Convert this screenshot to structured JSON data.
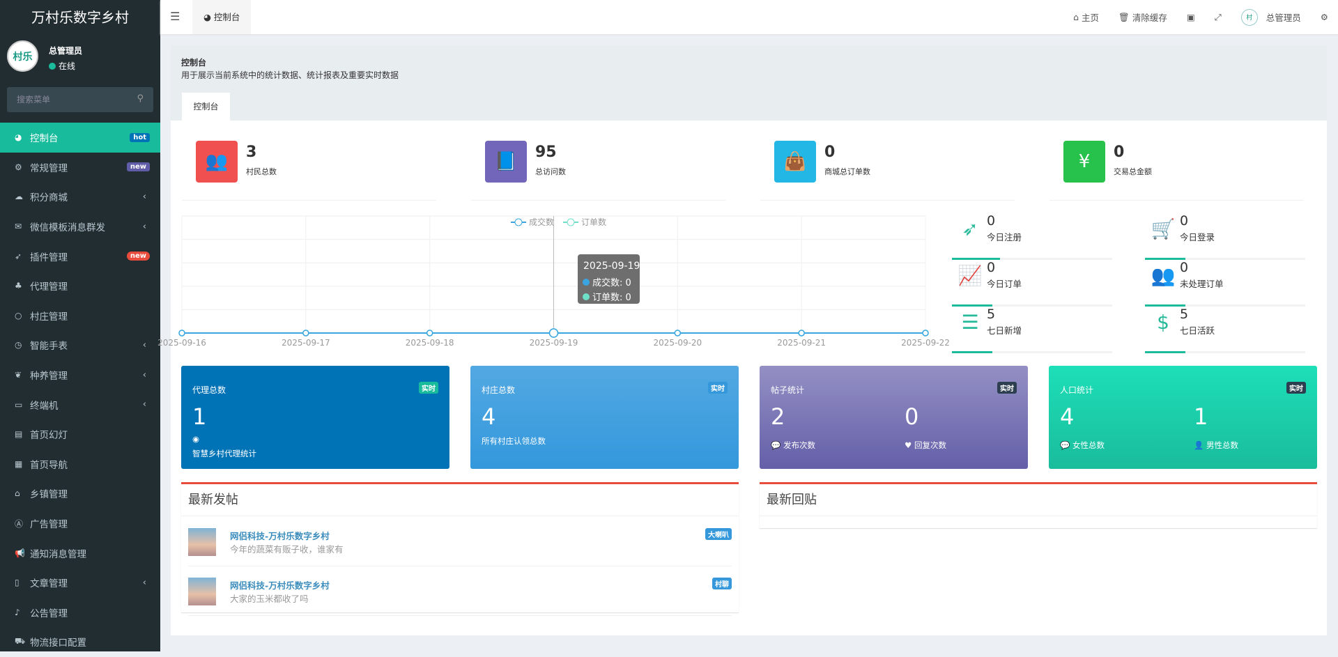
{
  "app_title": "万村乐数字乡村",
  "user": {
    "name": "总管理员",
    "status": "在线",
    "avatar_text": "村乐"
  },
  "search": {
    "placeholder": "搜索菜单"
  },
  "menu": [
    {
      "label": "控制台",
      "icon": "dashboard-icon",
      "badge": "hot",
      "badge_color": "#0073b7",
      "active": true
    },
    {
      "label": "常规管理",
      "icon": "cogs-icon",
      "badge": "new",
      "badge_color": "#605ca8"
    },
    {
      "label": "积分商城",
      "icon": "cloud-icon",
      "chevron": true
    },
    {
      "label": "微信模板消息群发",
      "icon": "envelope-icon",
      "chevron": true
    },
    {
      "label": "插件管理",
      "icon": "rocket-icon",
      "badge": "new",
      "badge_color": "#e74c3c"
    },
    {
      "label": "代理管理",
      "icon": "sitemap-icon"
    },
    {
      "label": "村庄管理",
      "icon": "circle-icon"
    },
    {
      "label": "智能手表",
      "icon": "clock-icon",
      "chevron": true
    },
    {
      "label": "种养管理",
      "icon": "leaf-icon",
      "chevron": true
    },
    {
      "label": "终端机",
      "icon": "laptop-icon",
      "chevron": true
    },
    {
      "label": "首页幻灯",
      "icon": "film-icon"
    },
    {
      "label": "首页导航",
      "icon": "th-icon"
    },
    {
      "label": "乡镇管理",
      "icon": "bank-icon"
    },
    {
      "label": "广告管理",
      "icon": "adn-icon"
    },
    {
      "label": "通知消息管理",
      "icon": "bullhorn-icon"
    },
    {
      "label": "文章管理",
      "icon": "file-icon",
      "chevron": true
    },
    {
      "label": "公告管理",
      "icon": "volume-icon"
    },
    {
      "label": "物流接口配置",
      "icon": "truck-icon"
    }
  ],
  "header": {
    "tab": "控制台",
    "home": "主页",
    "clear_cache": "清除缓存",
    "user": "总管理员"
  },
  "panel": {
    "title": "控制台",
    "desc": "用于展示当前系统中的统计数据、统计报表及重要实时数据",
    "tab": "控制台"
  },
  "stats": [
    {
      "value": "3",
      "label": "村民总数",
      "color": "#f05050",
      "icon": "users-icon"
    },
    {
      "value": "95",
      "label": "总访问数",
      "color": "#7266ba",
      "icon": "book-icon"
    },
    {
      "value": "0",
      "label": "商城总订单数",
      "color": "#23b7e5",
      "icon": "shopping-bag-icon"
    },
    {
      "value": "0",
      "label": "交易总金额",
      "color": "#27c24c",
      "icon": "yen-icon"
    }
  ],
  "chart_data": {
    "type": "line",
    "x": [
      "2025-09-16",
      "2025-09-17",
      "2025-09-18",
      "2025-09-19",
      "2025-09-20",
      "2025-09-21",
      "2025-09-22"
    ],
    "series": [
      {
        "name": "成交数",
        "values": [
          0,
          0,
          0,
          0,
          0,
          0,
          0
        ],
        "color": "#3aa5e0"
      },
      {
        "name": "订单数",
        "values": [
          0,
          0,
          0,
          0,
          0,
          0,
          0
        ],
        "color": "#6fe0c8"
      }
    ],
    "legend": "top-center",
    "grid": true,
    "tooltip": {
      "title": "2025-09-19",
      "lines": [
        "成交数: 0",
        "订单数: 0"
      ]
    }
  },
  "mini_stats": [
    {
      "value": "0",
      "label": "今日注册",
      "icon": "rocket-icon",
      "progress": 30
    },
    {
      "value": "0",
      "label": "今日登录",
      "icon": "cart-icon",
      "progress": 25
    },
    {
      "value": "0",
      "label": "今日订单",
      "icon": "line-chart-icon",
      "progress": 25
    },
    {
      "value": "0",
      "label": "未处理订单",
      "icon": "users-icon",
      "progress": 25
    },
    {
      "value": "5",
      "label": "七日新增",
      "icon": "list-alt-icon",
      "progress": 25
    },
    {
      "value": "5",
      "label": "七日活跃",
      "icon": "dollar-icon",
      "progress": 25
    }
  ],
  "boxes": [
    {
      "title": "代理总数",
      "badge": "实时",
      "value": "1",
      "label": "智慧乡村代理统计"
    },
    {
      "title": "村庄总数",
      "badge": "实时",
      "value": "4",
      "label": "所有村庄认领总数"
    },
    {
      "title": "帖子统计",
      "badge": "实时",
      "values": [
        "2",
        "0"
      ],
      "labels": [
        "发布次数",
        "回复次数"
      ]
    },
    {
      "title": "人口统计",
      "badge": "实时",
      "values": [
        "4",
        "1"
      ],
      "labels": [
        "女性总数",
        "男性总数"
      ]
    }
  ],
  "latest_posts": {
    "title": "最新发帖",
    "items": [
      {
        "name": "网侣科技-万村乐数字乡村",
        "content": "今年的蔬菜有贩子收，谁家有",
        "tag": "大喇叭"
      },
      {
        "name": "网侣科技-万村乐数字乡村",
        "content": "大家的玉米都收了吗",
        "tag": "村聊"
      }
    ]
  },
  "latest_replies": {
    "title": "最新回贴"
  }
}
